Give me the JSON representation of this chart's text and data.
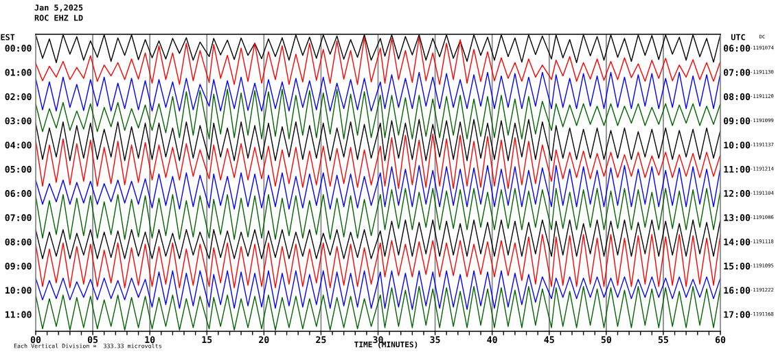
{
  "chart_data": {
    "type": "line",
    "title": "Jan 5,2025",
    "subtitle": "ROC EHZ LD",
    "xlabel": "TIME (MINUTES)",
    "ylabel": "EST",
    "y2label": "UTC",
    "annotations": [
      "Each Vertical Division =  333.33 microvolts",
      "DC",
      "-1191074",
      "-1191130",
      "-1191120",
      "-1191099",
      "-1191137",
      "-1191214",
      "-1191104",
      "-1191086",
      "-1191118",
      "-1191095",
      "-1191222",
      "-1191168"
    ],
    "grid": "x",
    "xlim": [
      0,
      60
    ],
    "xticks": [
      {
        "value": 0,
        "label": "00"
      },
      {
        "value": 1,
        "label": null
      },
      {
        "value": 2,
        "label": null
      },
      {
        "value": 3,
        "label": null
      },
      {
        "value": 4,
        "label": null
      },
      {
        "value": 5,
        "label": "05"
      },
      {
        "value": 6,
        "label": null
      },
      {
        "value": 7,
        "label": null
      },
      {
        "value": 8,
        "label": null
      },
      {
        "value": 9,
        "label": null
      },
      10,
      {
        "value": 11,
        "label": null
      },
      {
        "value": 12,
        "label": null
      },
      {
        "value": 13,
        "label": null
      },
      {
        "value": 14,
        "label": null
      },
      15,
      {
        "value": 16,
        "label": null
      },
      {
        "value": 17,
        "label": null
      },
      {
        "value": 18,
        "label": null
      },
      {
        "value": 19,
        "label": null
      },
      20,
      {
        "value": 21,
        "label": null
      },
      {
        "value": 22,
        "label": null
      },
      {
        "value": 23,
        "label": null
      },
      {
        "value": 24,
        "label": null
      },
      25,
      {
        "value": 26,
        "label": null
      },
      {
        "value": 27,
        "label": null
      },
      {
        "value": 28,
        "label": null
      },
      {
        "value": 29,
        "label": null
      },
      30,
      {
        "value": 31,
        "label": null
      },
      {
        "value": 32,
        "label": null
      },
      {
        "value": 33,
        "label": null
      },
      {
        "value": 34,
        "label": null
      },
      35,
      {
        "value": 36,
        "label": null
      },
      {
        "value": 37,
        "label": null
      },
      {
        "value": 38,
        "label": null
      },
      {
        "value": 39,
        "label": null
      },
      40,
      {
        "value": 41,
        "label": null
      },
      {
        "value": 42,
        "label": null
      },
      {
        "value": 43,
        "label": null
      },
      {
        "value": 44,
        "label": null
      },
      45,
      {
        "value": 46,
        "label": null
      },
      {
        "value": 47,
        "label": null
      },
      {
        "value": 48,
        "label": null
      },
      {
        "value": 49,
        "label": null
      },
      50,
      {
        "value": 51,
        "label": null
      },
      {
        "value": 52,
        "label": null
      },
      {
        "value": 53,
        "label": null
      },
      {
        "value": 54,
        "label": null
      },
      55,
      {
        "value": 56,
        "label": null
      },
      {
        "value": 57,
        "label": null
      },
      {
        "value": 58,
        "label": null
      },
      {
        "value": 59,
        "label": null
      },
      60
    ],
    "ylim": [
      11.7,
      -0.57
    ],
    "yticks": [
      {
        "value": 0,
        "label": "00:00"
      },
      {
        "value": 1,
        "label": "01:00"
      },
      {
        "value": 2,
        "label": "02:00"
      },
      {
        "value": 3,
        "label": "03:00"
      },
      {
        "value": 4,
        "label": "04:00"
      },
      {
        "value": 5,
        "label": "05:00"
      },
      {
        "value": 6,
        "label": "06:00"
      },
      {
        "value": 7,
        "label": "07:00"
      },
      {
        "value": 8,
        "label": "08:00"
      },
      {
        "value": 9,
        "label": "09:00"
      },
      {
        "value": 10,
        "label": "10:00"
      },
      {
        "value": 11,
        "label": "11:00"
      }
    ],
    "y2lim": [
      17.7,
      5.43
    ],
    "y2ticks": [
      {
        "value": 6,
        "label": "06:00"
      },
      {
        "value": 7,
        "label": "07:00"
      },
      {
        "value": 8,
        "label": "08:00"
      },
      {
        "value": 9,
        "label": "09:00"
      },
      {
        "value": 10,
        "label": "10:00"
      },
      {
        "value": 11,
        "label": "11:00"
      },
      {
        "value": 12,
        "label": "12:00"
      },
      {
        "value": 13,
        "label": "13:00"
      },
      {
        "value": 14,
        "label": "14:00"
      },
      {
        "value": 15,
        "label": "15:00"
      },
      {
        "value": 16,
        "label": "16:00"
      },
      {
        "value": 17,
        "label": "17:00"
      }
    ],
    "x": [
      0,
      0.6,
      1.2,
      1.8,
      2.4,
      3,
      3.6,
      4.2,
      4.8,
      5.4,
      6,
      6.6,
      7.2,
      7.8,
      8.4,
      9,
      9.6,
      10.2,
      10.8,
      11.4,
      12,
      12.6,
      13.2,
      13.8,
      14.4,
      15.2,
      15.6,
      16.2,
      16.8,
      17.4,
      18,
      18.6,
      19.2,
      19.8,
      20.4,
      21,
      21.6,
      22.2,
      22.8,
      23.4,
      24,
      24.6,
      25.2,
      25.8,
      26.4,
      27,
      27.6,
      28.2,
      28.8,
      29.4,
      30.2,
      30.6,
      31.2,
      31.8,
      32.4,
      33,
      33.6,
      34.2,
      34.8,
      35.4,
      36,
      36.6,
      37.2,
      37.8,
      38.4,
      39,
      39.6,
      40.2,
      40.8,
      41.4,
      42,
      42.6,
      43.2,
      43.8,
      44.4,
      45.2,
      45.6,
      46.2,
      46.8,
      47.4,
      48,
      48.6,
      49.2,
      49.8,
      50.4,
      51,
      51.6,
      52.2,
      52.8,
      53.4,
      54,
      54.6,
      55.2,
      55.8,
      56.4,
      57,
      57.6,
      58.2,
      58.8,
      59.4,
      60
    ],
    "series": [
      {
        "color": "#000000",
        "values": [
          -0.55,
          0.42,
          -0.38,
          0.6,
          -0.55,
          0.25,
          -0.47,
          0.5,
          -0.3,
          0.38,
          -0.55,
          0.55,
          -0.42,
          0.3,
          -0.55,
          0.48,
          -0.35,
          0.4,
          -0.3,
          0.45,
          -0.4,
          0.22,
          -0.43,
          0.5,
          -0.25,
          0.35,
          -0.4,
          0.28,
          -0.33,
          0.47,
          -0.42,
          0.3,
          -0.2,
          0.44,
          -0.38,
          0.35,
          -0.43,
          0.5,
          -0.55,
          0.3,
          -0.45,
          0.42,
          -0.55,
          0.25,
          -0.5,
          0.46,
          -0.35,
          0.38,
          -0.55,
          0.5,
          -0.4,
          0.33,
          -0.55,
          0.45,
          -0.48,
          0.28,
          -0.55,
          0.5,
          -0.4,
          0.36,
          -0.55,
          0.42,
          -0.3,
          0.55,
          -0.55,
          0.3,
          -0.45,
          0.5,
          -0.55,
          0.35,
          -0.42,
          0.58,
          -0.55,
          0.27,
          -0.5,
          0.45,
          -0.55,
          0.4,
          -0.35,
          0.6,
          -0.55,
          0.32,
          -0.48,
          0.5,
          -0.55,
          0.38,
          -0.4,
          0.55,
          -0.55,
          0.3,
          -0.52,
          0.47,
          -0.55,
          0.25,
          -0.45,
          0.5,
          -0.55,
          0.36,
          -0.4,
          0.58,
          -0.55
        ]
      },
      {
        "color": "#ff0000",
        "values": [
          0.62,
          1.35,
          0.75,
          1.2,
          0.55,
          1.3,
          0.8,
          1.25,
          0.32,
          1.37,
          0.7,
          1.15,
          0.6,
          1.3,
          0.45,
          1.28,
          0.2,
          1.45,
          -0.1,
          1.3,
          0.2,
          1.5,
          -0.2,
          1.35,
          0.1,
          1.42,
          -0.15,
          1.25,
          0.3,
          1.5,
          0.0,
          1.38,
          -0.2,
          1.45,
          0.15,
          1.3,
          -0.1,
          1.5,
          0.25,
          1.4,
          -0.2,
          1.33,
          0.05,
          1.45,
          -0.3,
          1.28,
          0.1,
          1.5,
          -0.45,
          1.4,
          0.0,
          1.45,
          -0.4,
          1.3,
          0.1,
          1.42,
          -0.45,
          1.35,
          0.2,
          1.5,
          -0.2,
          1.3,
          -0.35,
          1.45,
          0.05,
          1.38,
          0.15,
          1.35,
          0.4,
          1.25,
          0.6,
          1.37,
          0.45,
          1.2,
          0.7,
          1.3,
          0.5,
          1.15,
          0.35,
          1.37,
          0.6,
          1.28,
          0.45,
          1.33,
          0.55,
          1.3,
          0.4,
          1.22,
          0.65,
          1.37,
          0.5,
          1.25,
          0.42,
          1.35,
          0.7,
          1.2,
          0.48,
          1.3,
          0.6,
          1.37,
          0.55
        ]
      },
      {
        "color": "#0000ff",
        "values": [
          1.25,
          2.55,
          1.4,
          2.6,
          1.2,
          2.45,
          1.5,
          2.58,
          1.3,
          2.4,
          1.2,
          2.6,
          1.45,
          2.5,
          1.25,
          2.55,
          1.35,
          2.6,
          1.3,
          2.45,
          1.4,
          2.6,
          1.25,
          2.55,
          1.5,
          2.4,
          1.3,
          2.6,
          1.35,
          2.5,
          1.2,
          2.58,
          1.45,
          2.6,
          1.3,
          2.5,
          1.4,
          2.6,
          1.25,
          2.45,
          1.35,
          2.55,
          1.2,
          2.6,
          1.45,
          2.5,
          1.3,
          2.55,
          1.25,
          2.6,
          1.4,
          2.5,
          1.1,
          2.45,
          1.25,
          2.5,
          1.0,
          2.4,
          1.2,
          2.5,
          1.05,
          2.45,
          1.3,
          2.5,
          1.1,
          2.4,
          1.0,
          2.5,
          1.15,
          2.45,
          1.05,
          2.5,
          1.2,
          2.4,
          1.0,
          2.5,
          1.1,
          2.45,
          1.25,
          2.5,
          1.05,
          2.4,
          1.15,
          2.5,
          1.0,
          2.45,
          1.2,
          2.5,
          1.1,
          2.4,
          1.05,
          2.5,
          1.25,
          2.45,
          1.0,
          2.5,
          1.15,
          2.4,
          1.1,
          2.5,
          1.05
        ]
      },
      {
        "color": "#006400",
        "values": [
          2.3,
          3.45,
          2.5,
          3.3,
          2.25,
          3.4,
          2.6,
          3.35,
          2.3,
          3.45,
          2.45,
          3.25,
          2.25,
          3.4,
          2.5,
          3.3,
          2.35,
          3.4,
          2.3,
          3.5,
          2.0,
          3.7,
          1.8,
          3.6,
          1.75,
          3.75,
          1.9,
          3.55,
          1.7,
          3.7,
          1.85,
          3.6,
          1.75,
          3.75,
          1.8,
          3.65,
          1.7,
          3.75,
          1.95,
          3.6,
          1.75,
          3.7,
          1.85,
          3.55,
          1.7,
          3.75,
          1.9,
          3.6,
          1.8,
          3.7,
          1.95,
          3.7,
          1.95,
          3.6,
          2.05,
          3.75,
          1.95,
          3.65,
          2.1,
          3.7,
          2.0,
          3.6,
          1.95,
          3.75,
          2.1,
          3.65,
          2.0,
          3.7,
          1.95,
          3.6,
          2.1,
          3.75,
          2.0,
          3.55,
          2.2,
          3.4,
          2.3,
          3.25,
          2.35,
          3.2,
          2.3,
          3.15,
          2.4,
          3.2,
          2.3,
          3.2,
          2.4,
          3.1,
          2.3,
          3.2,
          2.45,
          3.15,
          2.3,
          3.2,
          2.35,
          3.1,
          2.3,
          3.2,
          2.4,
          3.15,
          2.3
        ]
      },
      {
        "color": "#000000",
        "values": [
          3.1,
          4.6,
          3.3,
          4.5,
          3.05,
          4.65,
          3.2,
          4.55,
          3.1,
          4.6,
          3.35,
          4.5,
          3.05,
          4.65,
          3.25,
          4.55,
          3.1,
          4.6,
          3.1,
          4.5,
          3.3,
          4.65,
          3.05,
          4.55,
          3.2,
          4.6,
          3.1,
          4.5,
          3.3,
          4.65,
          3.05,
          4.55,
          3.2,
          4.6,
          3.1,
          4.65,
          3.25,
          4.5,
          3.05,
          4.6,
          3.2,
          4.55,
          3.1,
          4.65,
          3.3,
          4.5,
          3.05,
          4.6,
          3.15,
          4.55,
          3.1,
          4.65,
          3.0,
          4.55,
          3.1,
          4.6,
          2.95,
          4.65,
          3.15,
          4.5,
          3.0,
          4.6,
          3.05,
          4.65,
          2.95,
          4.55,
          3.1,
          4.6,
          3.0,
          4.65,
          3.1,
          4.5,
          2.95,
          4.6,
          3.05,
          4.65,
          3.2,
          4.55,
          3.3,
          4.6,
          3.35,
          4.55,
          3.3,
          4.6,
          3.4,
          4.55,
          3.3,
          4.6,
          3.45,
          4.5,
          3.35,
          4.55,
          3.3,
          4.6,
          3.4,
          4.5,
          3.35,
          4.6,
          3.3,
          4.55,
          3.4
        ]
      },
      {
        "color": "#ff0000",
        "values": [
          3.8,
          5.7,
          4.0,
          5.55,
          3.75,
          5.65,
          3.95,
          5.5,
          3.8,
          5.7,
          4.1,
          5.6,
          3.85,
          5.65,
          4.0,
          5.55,
          3.9,
          5.45,
          4.0,
          5.35,
          4.1,
          5.45,
          3.95,
          5.3,
          4.2,
          5.4,
          4.0,
          5.45,
          4.15,
          5.35,
          3.95,
          5.45,
          4.1,
          5.4,
          4.05,
          5.7,
          4.2,
          5.6,
          4.1,
          5.75,
          4.25,
          5.65,
          4.05,
          5.7,
          4.15,
          5.6,
          4.1,
          5.75,
          4.2,
          5.65,
          4.05,
          5.7,
          3.7,
          5.8,
          3.6,
          5.65,
          3.8,
          5.75,
          3.55,
          5.7,
          3.75,
          5.8,
          3.6,
          5.7,
          3.85,
          5.75,
          3.65,
          5.7,
          3.8,
          5.8,
          3.7,
          5.65,
          3.85,
          5.6,
          4.0,
          5.5,
          4.2,
          5.4,
          4.3,
          5.35,
          4.25,
          5.4,
          4.35,
          5.3,
          4.3,
          5.35,
          4.4,
          5.3,
          4.3,
          5.35,
          4.45,
          5.25,
          4.3,
          5.35,
          4.4,
          5.3,
          4.35,
          5.35,
          4.3,
          5.3,
          4.4
        ]
      },
      {
        "color": "#0000ff",
        "values": [
          5.45,
          6.45,
          5.6,
          6.35,
          5.45,
          6.45,
          5.55,
          6.4,
          5.5,
          6.45,
          5.6,
          6.35,
          5.45,
          6.4,
          5.5,
          6.45,
          5.4,
          6.6,
          5.2,
          6.5,
          5.3,
          6.65,
          5.15,
          6.55,
          5.25,
          6.6,
          5.2,
          6.5,
          5.3,
          6.65,
          5.15,
          6.55,
          5.2,
          6.6,
          5.25,
          6.55,
          5.15,
          6.65,
          5.3,
          6.6,
          5.2,
          6.5,
          5.15,
          6.65,
          5.25,
          6.55,
          5.2,
          6.6,
          5.3,
          6.5,
          5.15,
          6.55,
          4.9,
          6.5,
          5.0,
          6.55,
          4.85,
          6.45,
          5.05,
          6.55,
          4.9,
          6.5,
          5.0,
          6.55,
          4.95,
          6.45,
          4.85,
          6.55,
          5.0,
          6.5,
          4.9,
          6.55,
          5.05,
          6.45,
          4.95,
          6.55,
          4.85,
          6.5,
          5.0,
          6.55,
          4.9,
          6.45,
          5.05,
          6.55,
          4.95,
          6.5,
          4.85,
          6.55,
          5.0,
          6.45,
          4.9,
          6.55,
          5.05,
          6.5,
          4.95,
          6.55,
          4.9,
          6.45,
          5.0,
          6.55,
          4.95
        ]
      },
      {
        "color": "#006400",
        "values": [
          6.1,
          7.85,
          6.3,
          7.7,
          6.05,
          7.9,
          6.2,
          7.75,
          6.1,
          7.85,
          6.35,
          7.7,
          6.05,
          7.9,
          6.25,
          7.8,
          6.1,
          7.85,
          6.2,
          7.75,
          6.05,
          7.9,
          6.3,
          7.8,
          6.1,
          7.85,
          6.25,
          7.7,
          6.05,
          7.9,
          6.2,
          7.8,
          6.1,
          7.85,
          6.05,
          7.9,
          6.2,
          7.75,
          6.1,
          7.85,
          6.3,
          7.7,
          6.05,
          7.9,
          6.2,
          7.8,
          6.1,
          7.85,
          6.25,
          7.75,
          6.05,
          7.5,
          5.85,
          7.45,
          5.8,
          7.5,
          5.95,
          7.4,
          5.8,
          7.5,
          5.9,
          7.45,
          5.85,
          7.5,
          5.8,
          7.4,
          5.95,
          7.5,
          5.85,
          7.45,
          5.8,
          7.5,
          5.9,
          7.4,
          5.85,
          7.5,
          5.8,
          7.45,
          5.95,
          7.5,
          5.85,
          7.4,
          5.8,
          7.5,
          5.9,
          7.45,
          5.8,
          7.5,
          5.85,
          7.4,
          5.95,
          7.5,
          5.8,
          7.45,
          5.9,
          7.5,
          5.85,
          7.4,
          5.8,
          7.5,
          5.9
        ]
      },
      {
        "color": "#000000",
        "values": [
          7.5,
          8.7,
          7.6,
          8.6,
          7.5,
          8.7,
          7.65,
          8.55,
          7.5,
          8.7,
          7.6,
          8.65,
          7.55,
          8.7,
          7.5,
          8.6,
          7.6,
          8.7,
          7.5,
          8.6,
          7.65,
          8.7,
          7.5,
          8.55,
          7.6,
          8.7,
          7.5,
          8.65,
          7.55,
          8.7,
          7.6,
          8.6,
          7.5,
          8.7,
          7.55,
          8.65,
          7.5,
          8.7,
          7.6,
          8.6,
          7.5,
          8.7,
          7.65,
          8.55,
          7.5,
          8.7,
          7.6,
          8.65,
          7.5,
          8.7,
          7.55,
          8.6,
          7.15,
          8.55,
          7.1,
          8.6,
          7.2,
          8.5,
          7.1,
          8.6,
          7.15,
          8.55,
          7.25,
          8.6,
          7.1,
          8.5,
          7.2,
          8.6,
          7.1,
          8.55,
          7.15,
          8.6,
          7.2,
          8.5,
          7.1,
          8.6,
          7.15,
          8.55,
          7.1,
          8.6,
          7.25,
          8.5,
          7.1,
          8.6,
          7.15,
          8.55,
          7.1,
          8.6,
          7.2,
          8.5,
          7.1,
          8.6,
          7.15,
          8.55,
          7.25,
          8.6,
          7.1,
          8.5,
          7.2,
          8.6,
          7.1
        ]
      },
      {
        "color": "#ff0000",
        "values": [
          8.1,
          9.85,
          8.3,
          9.7,
          8.05,
          9.9,
          8.2,
          9.75,
          8.1,
          9.85,
          8.35,
          9.7,
          8.05,
          9.9,
          8.25,
          9.8,
          8.1,
          9.85,
          8.2,
          9.75,
          8.05,
          9.9,
          8.3,
          9.8,
          8.1,
          9.85,
          8.25,
          9.7,
          8.05,
          9.9,
          8.2,
          9.8,
          8.1,
          9.85,
          8.05,
          9.9,
          8.2,
          9.75,
          8.1,
          9.85,
          8.3,
          9.7,
          8.05,
          9.9,
          8.2,
          9.8,
          8.1,
          9.85,
          8.25,
          9.75,
          8.05,
          9.45,
          7.95,
          9.4,
          8.1,
          9.45,
          8.0,
          9.35,
          7.95,
          9.45,
          8.05,
          9.4,
          7.95,
          9.45,
          8.1,
          9.35,
          8.0,
          9.45,
          7.95,
          9.4,
          8.05,
          9.6,
          7.8,
          9.75,
          7.7,
          9.85,
          7.8,
          9.8,
          7.75,
          9.85,
          7.7,
          9.75,
          7.85,
          9.85,
          7.7,
          9.8,
          7.85,
          9.85,
          7.75,
          9.75,
          7.7,
          9.85,
          7.8,
          9.8,
          7.7,
          9.85,
          7.75,
          9.75,
          7.85,
          9.8,
          7.7
        ]
      },
      {
        "color": "#0000ff",
        "values": [
          9.5,
          10.4,
          9.6,
          10.35,
          9.5,
          10.4,
          9.65,
          10.3,
          9.55,
          10.4,
          9.5,
          10.35,
          9.6,
          10.4,
          9.5,
          10.3,
          9.55,
          10.7,
          9.25,
          10.6,
          9.2,
          10.75,
          9.3,
          10.65,
          9.2,
          10.7,
          9.35,
          10.6,
          9.2,
          10.75,
          9.25,
          10.65,
          9.3,
          10.7,
          9.2,
          10.75,
          9.3,
          10.65,
          9.2,
          10.7,
          9.35,
          10.6,
          9.2,
          10.75,
          9.25,
          10.65,
          9.3,
          10.7,
          9.2,
          10.75,
          9.25,
          10.75,
          9.2,
          10.7,
          9.3,
          10.8,
          9.2,
          10.65,
          9.25,
          10.75,
          9.2,
          10.7,
          9.35,
          10.8,
          9.2,
          10.65,
          9.25,
          10.75,
          9.2,
          10.7,
          9.3,
          10.6,
          9.35,
          10.5,
          9.45,
          10.35,
          9.5,
          10.3,
          9.45,
          10.35,
          9.5,
          10.3,
          9.45,
          10.3,
          9.5,
          10.3,
          9.45,
          10.35,
          9.55,
          10.3,
          9.45,
          10.3,
          9.5,
          10.35,
          9.45,
          10.3,
          9.55,
          10.3,
          9.45,
          10.35,
          9.5
        ]
      },
      {
        "color": "#006400",
        "values": [
          10.2,
          11.6,
          10.35,
          11.5,
          10.2,
          11.65,
          10.3,
          11.55,
          10.25,
          11.6,
          10.4,
          11.5,
          10.2,
          11.65,
          10.3,
          11.55,
          10.25,
          11.6,
          10.3,
          11.5,
          10.2,
          11.65,
          10.35,
          11.55,
          10.25,
          11.6,
          10.3,
          11.5,
          10.2,
          11.65,
          10.35,
          11.55,
          10.25,
          11.6,
          10.2,
          11.65,
          10.3,
          11.55,
          10.25,
          11.6,
          10.35,
          11.5,
          10.2,
          11.65,
          10.3,
          11.55,
          10.25,
          11.6,
          10.35,
          11.5,
          10.2,
          11.55,
          9.9,
          11.5,
          10.0,
          11.55,
          9.85,
          11.45,
          9.95,
          11.55,
          9.9,
          11.5,
          10.05,
          11.55,
          9.85,
          11.45,
          9.95,
          11.55,
          9.9,
          11.5,
          10.0,
          11.55,
          9.85,
          11.45,
          9.95,
          11.55,
          9.9,
          11.5,
          10.05,
          11.55,
          9.85,
          11.45,
          9.95,
          11.55,
          9.9,
          11.5,
          10.0,
          11.55,
          9.85,
          11.45,
          9.95,
          11.55,
          9.9,
          11.5,
          10.05,
          11.55,
          9.85,
          11.45,
          9.95,
          11.55,
          9.9
        ]
      }
    ]
  }
}
